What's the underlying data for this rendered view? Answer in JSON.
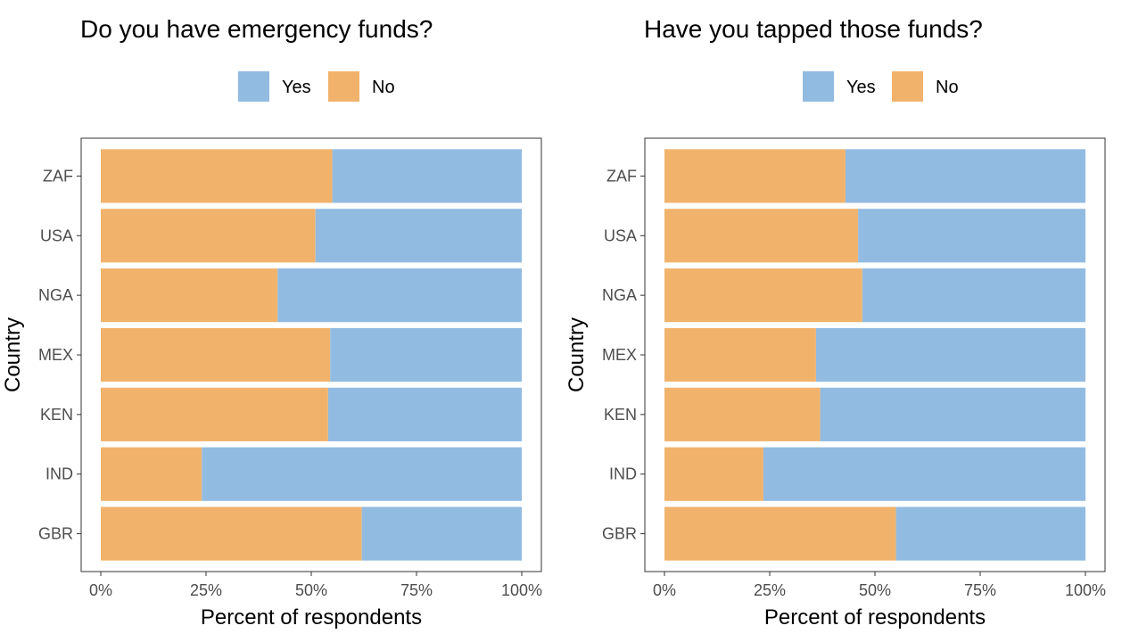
{
  "colors": {
    "yes": "#92bbe1",
    "no": "#f1b36c",
    "panel_border": "#333333",
    "tick": "#333333"
  },
  "chart_data": [
    {
      "type": "bar",
      "orientation": "horizontal",
      "stacked": true,
      "title": "Do you have emergency funds?",
      "xlabel": "Percent of respondents",
      "ylabel": "Country",
      "xlim": [
        0,
        1
      ],
      "x_ticks": [
        "0%",
        "25%",
        "50%",
        "75%",
        "100%"
      ],
      "legend": {
        "position": "top",
        "entries": [
          "Yes",
          "No"
        ]
      },
      "categories": [
        "ZAF",
        "USA",
        "NGA",
        "MEX",
        "KEN",
        "IND",
        "GBR"
      ],
      "series": [
        {
          "name": "No",
          "values": [
            0.55,
            0.51,
            0.42,
            0.545,
            0.54,
            0.24,
            0.62
          ]
        },
        {
          "name": "Yes",
          "values": [
            0.45,
            0.49,
            0.58,
            0.455,
            0.46,
            0.76,
            0.38
          ]
        }
      ]
    },
    {
      "type": "bar",
      "orientation": "horizontal",
      "stacked": true,
      "title": "Have you tapped those funds?",
      "xlabel": "Percent of respondents",
      "ylabel": "Country",
      "xlim": [
        0,
        1
      ],
      "x_ticks": [
        "0%",
        "25%",
        "50%",
        "75%",
        "100%"
      ],
      "legend": {
        "position": "top",
        "entries": [
          "Yes",
          "No"
        ]
      },
      "categories": [
        "ZAF",
        "USA",
        "NGA",
        "MEX",
        "KEN",
        "IND",
        "GBR"
      ],
      "series": [
        {
          "name": "No",
          "values": [
            0.43,
            0.46,
            0.47,
            0.36,
            0.37,
            0.235,
            0.55
          ]
        },
        {
          "name": "Yes",
          "values": [
            0.57,
            0.54,
            0.53,
            0.64,
            0.63,
            0.765,
            0.45
          ]
        }
      ]
    }
  ]
}
